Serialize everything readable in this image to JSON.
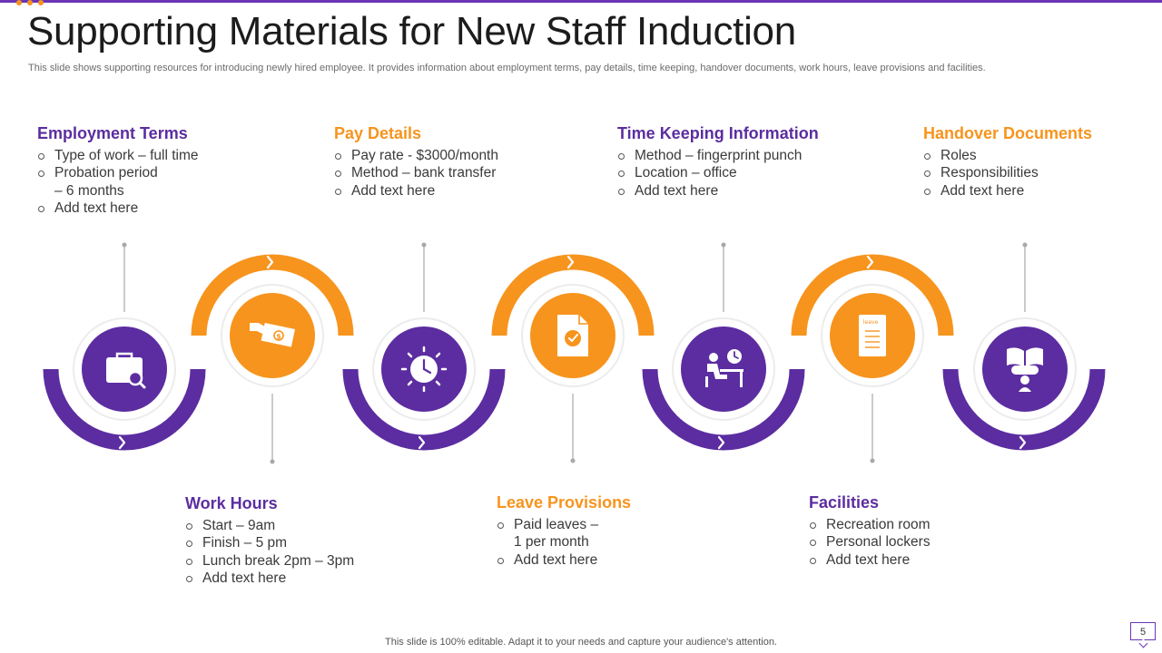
{
  "header": {
    "title": "Supporting Materials for New Staff Induction",
    "subtitle": "This slide shows supporting resources for introducing newly hired employee. It provides information about employment terms, pay details, time keeping, handover documents, work hours, leave provisions and facilities."
  },
  "colors": {
    "purple": "#5b2da0",
    "orange": "#f7941d",
    "accent_rule": "#6b35b5"
  },
  "steps": [
    {
      "id": "employment-terms",
      "title": "Employment Terms",
      "color": "purple",
      "icon": "briefcase-search-icon",
      "items": [
        "Type of work – full time",
        "Probation period",
        "– 6 months",
        "Add text here"
      ]
    },
    {
      "id": "work-hours",
      "title": "Work Hours",
      "color": "purple",
      "icon": "money-hand-icon",
      "items": [
        "Start – 9am",
        "Finish – 5 pm",
        "Lunch break 2pm – 3pm",
        "Add text here"
      ]
    },
    {
      "id": "pay-details",
      "title": "Pay Details",
      "color": "orange",
      "icon": "clock-icon",
      "items": [
        "Pay rate - $3000/month",
        "Method – bank transfer",
        "Add text here"
      ]
    },
    {
      "id": "leave-provisions",
      "title": "Leave Provisions",
      "color": "orange",
      "icon": "document-check-icon",
      "items": [
        "Paid leaves –",
        "1 per month",
        "Add text here"
      ]
    },
    {
      "id": "time-keeping",
      "title": "Time Keeping Information",
      "color": "purple",
      "icon": "desk-worker-icon",
      "items": [
        "Method – fingerprint punch",
        "Location – office",
        "Add text here"
      ]
    },
    {
      "id": "facilities",
      "title": "Facilities",
      "color": "purple",
      "icon": "leave-form-icon",
      "items": [
        "Recreation room",
        "Personal lockers",
        "Add text here"
      ]
    },
    {
      "id": "handover-documents",
      "title": "Handover Documents",
      "color": "orange",
      "icon": "handover-book-icon",
      "items": [
        "Roles",
        "Responsibilities",
        "Add text here"
      ]
    }
  ],
  "footer": {
    "text": "This slide is 100% editable. Adapt it to your needs and capture your audience's attention.",
    "page_number": "5"
  }
}
